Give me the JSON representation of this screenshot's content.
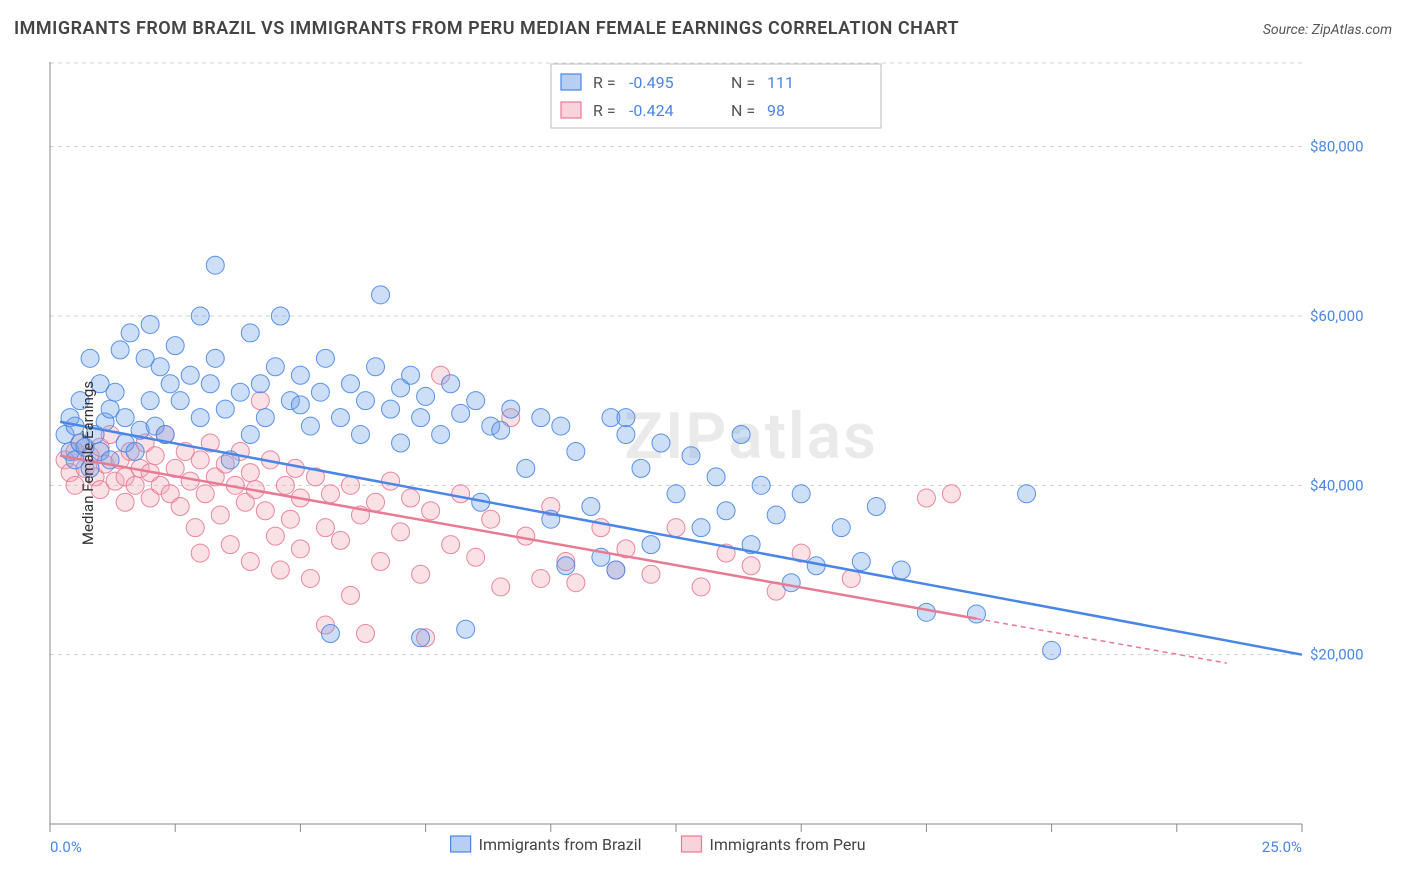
{
  "title": "IMMIGRANTS FROM BRAZIL VS IMMIGRANTS FROM PERU MEDIAN FEMALE EARNINGS CORRELATION CHART",
  "source": "Source: ZipAtlas.com",
  "ylabel": "Median Female Earnings",
  "watermark": "ZIPatlas",
  "plot": {
    "background_color": "#ffffff",
    "grid_color": "#d0d0d0",
    "axis_color": "#888888",
    "xlim": [
      0,
      25
    ],
    "ylim": [
      0,
      90000
    ],
    "y_ticks": [
      20000,
      40000,
      60000,
      80000
    ],
    "y_tick_labels": [
      "$20,000",
      "$40,000",
      "$60,000",
      "$80,000"
    ],
    "x_tick_positions": [
      0,
      2.5,
      5,
      7.5,
      10,
      12.5,
      15,
      17.5,
      20,
      22.5,
      25
    ],
    "x_axis_start_label": "0.0%",
    "x_axis_end_label": "25.0%",
    "marker_radius": 9,
    "marker_fill_opacity": 0.35,
    "marker_stroke_opacity": 0.9,
    "marker_stroke_width": 1,
    "trend_line_width": 2.5
  },
  "series": [
    {
      "name": "Immigrants from Brazil",
      "color": "#6fa0e8",
      "stroke": "#4a86e8",
      "R": "-0.495",
      "N": "111",
      "trend": {
        "x1": 0.2,
        "y1": 47500,
        "x2": 25,
        "y2": 20000,
        "dash_from_x": null
      },
      "points": [
        [
          0.3,
          46000
        ],
        [
          0.4,
          44000
        ],
        [
          0.4,
          48000
        ],
        [
          0.5,
          43000
        ],
        [
          0.5,
          47000
        ],
        [
          0.6,
          45000
        ],
        [
          0.6,
          50000
        ],
        [
          0.7,
          44500
        ],
        [
          0.8,
          55000
        ],
        [
          0.8,
          42000
        ],
        [
          0.9,
          46000
        ],
        [
          1.0,
          52000
        ],
        [
          1.0,
          44000
        ],
        [
          1.1,
          47500
        ],
        [
          1.2,
          49000
        ],
        [
          1.2,
          43000
        ],
        [
          1.3,
          51000
        ],
        [
          1.4,
          56000
        ],
        [
          1.5,
          45000
        ],
        [
          1.5,
          48000
        ],
        [
          1.6,
          58000
        ],
        [
          1.7,
          44000
        ],
        [
          1.8,
          46500
        ],
        [
          1.9,
          55000
        ],
        [
          2.0,
          50000
        ],
        [
          2.0,
          59000
        ],
        [
          2.1,
          47000
        ],
        [
          2.2,
          54000
        ],
        [
          2.3,
          46000
        ],
        [
          2.4,
          52000
        ],
        [
          2.5,
          56500
        ],
        [
          2.6,
          50000
        ],
        [
          2.8,
          53000
        ],
        [
          3.0,
          48000
        ],
        [
          3.0,
          60000
        ],
        [
          3.2,
          52000
        ],
        [
          3.3,
          66000
        ],
        [
          3.3,
          55000
        ],
        [
          3.5,
          49000
        ],
        [
          3.6,
          43000
        ],
        [
          3.8,
          51000
        ],
        [
          4.0,
          46000
        ],
        [
          4.0,
          58000
        ],
        [
          4.2,
          52000
        ],
        [
          4.3,
          48000
        ],
        [
          4.5,
          54000
        ],
        [
          4.6,
          60000
        ],
        [
          4.8,
          50000
        ],
        [
          5.0,
          53000
        ],
        [
          5.0,
          49500
        ],
        [
          5.2,
          47000
        ],
        [
          5.4,
          51000
        ],
        [
          5.5,
          55000
        ],
        [
          5.6,
          22500
        ],
        [
          5.8,
          48000
        ],
        [
          6.0,
          52000
        ],
        [
          6.2,
          46000
        ],
        [
          6.3,
          50000
        ],
        [
          6.5,
          54000
        ],
        [
          6.6,
          62500
        ],
        [
          6.8,
          49000
        ],
        [
          7.0,
          51500
        ],
        [
          7.0,
          45000
        ],
        [
          7.2,
          53000
        ],
        [
          7.4,
          22000
        ],
        [
          7.4,
          48000
        ],
        [
          7.5,
          50500
        ],
        [
          7.8,
          46000
        ],
        [
          8.0,
          52000
        ],
        [
          8.2,
          48500
        ],
        [
          8.3,
          23000
        ],
        [
          8.5,
          50000
        ],
        [
          8.6,
          38000
        ],
        [
          8.8,
          47000
        ],
        [
          9.0,
          46500
        ],
        [
          9.2,
          49000
        ],
        [
          9.5,
          42000
        ],
        [
          9.8,
          48000
        ],
        [
          10.0,
          36000
        ],
        [
          10.2,
          47000
        ],
        [
          10.3,
          30500
        ],
        [
          10.5,
          44000
        ],
        [
          10.8,
          37500
        ],
        [
          11.0,
          31500
        ],
        [
          11.2,
          48000
        ],
        [
          11.3,
          30000
        ],
        [
          11.5,
          46000
        ],
        [
          11.5,
          48000
        ],
        [
          11.8,
          42000
        ],
        [
          12.0,
          33000
        ],
        [
          12.2,
          45000
        ],
        [
          12.5,
          39000
        ],
        [
          12.8,
          43500
        ],
        [
          13.0,
          35000
        ],
        [
          13.3,
          41000
        ],
        [
          13.5,
          37000
        ],
        [
          13.8,
          46000
        ],
        [
          14.0,
          33000
        ],
        [
          14.2,
          40000
        ],
        [
          14.5,
          36500
        ],
        [
          14.8,
          28500
        ],
        [
          15.0,
          39000
        ],
        [
          15.3,
          30500
        ],
        [
          15.8,
          35000
        ],
        [
          16.2,
          31000
        ],
        [
          16.5,
          37500
        ],
        [
          17.0,
          30000
        ],
        [
          17.5,
          25000
        ],
        [
          18.5,
          24800
        ],
        [
          19.5,
          39000
        ],
        [
          20.0,
          20500
        ]
      ]
    },
    {
      "name": "Immigrants from Peru",
      "color": "#f2a8b8",
      "stroke": "#e87a94",
      "R": "-0.424",
      "N": "98",
      "trend": {
        "x1": 0.2,
        "y1": 43500,
        "x2": 23.5,
        "y2": 19000,
        "dash_from_x": 18.5
      },
      "points": [
        [
          0.3,
          43000
        ],
        [
          0.4,
          41500
        ],
        [
          0.5,
          44000
        ],
        [
          0.5,
          40000
        ],
        [
          0.6,
          45000
        ],
        [
          0.7,
          42000
        ],
        [
          0.8,
          43500
        ],
        [
          0.9,
          41000
        ],
        [
          1.0,
          44500
        ],
        [
          1.0,
          39500
        ],
        [
          1.1,
          42500
        ],
        [
          1.2,
          46000
        ],
        [
          1.3,
          40500
        ],
        [
          1.4,
          43000
        ],
        [
          1.5,
          41000
        ],
        [
          1.5,
          38000
        ],
        [
          1.6,
          44000
        ],
        [
          1.7,
          40000
        ],
        [
          1.8,
          42000
        ],
        [
          1.9,
          45000
        ],
        [
          2.0,
          41500
        ],
        [
          2.0,
          38500
        ],
        [
          2.1,
          43500
        ],
        [
          2.2,
          40000
        ],
        [
          2.3,
          46000
        ],
        [
          2.4,
          39000
        ],
        [
          2.5,
          42000
        ],
        [
          2.6,
          37500
        ],
        [
          2.7,
          44000
        ],
        [
          2.8,
          40500
        ],
        [
          2.9,
          35000
        ],
        [
          3.0,
          43000
        ],
        [
          3.0,
          32000
        ],
        [
          3.1,
          39000
        ],
        [
          3.2,
          45000
        ],
        [
          3.3,
          41000
        ],
        [
          3.4,
          36500
        ],
        [
          3.5,
          42500
        ],
        [
          3.6,
          33000
        ],
        [
          3.7,
          40000
        ],
        [
          3.8,
          44000
        ],
        [
          3.9,
          38000
        ],
        [
          4.0,
          41500
        ],
        [
          4.0,
          31000
        ],
        [
          4.1,
          39500
        ],
        [
          4.2,
          50000
        ],
        [
          4.3,
          37000
        ],
        [
          4.4,
          43000
        ],
        [
          4.5,
          34000
        ],
        [
          4.6,
          30000
        ],
        [
          4.7,
          40000
        ],
        [
          4.8,
          36000
        ],
        [
          4.9,
          42000
        ],
        [
          5.0,
          32500
        ],
        [
          5.0,
          38500
        ],
        [
          5.2,
          29000
        ],
        [
          5.3,
          41000
        ],
        [
          5.5,
          35000
        ],
        [
          5.5,
          23500
        ],
        [
          5.6,
          39000
        ],
        [
          5.8,
          33500
        ],
        [
          6.0,
          40000
        ],
        [
          6.0,
          27000
        ],
        [
          6.2,
          36500
        ],
        [
          6.3,
          22500
        ],
        [
          6.5,
          38000
        ],
        [
          6.6,
          31000
        ],
        [
          6.8,
          40500
        ],
        [
          7.0,
          34500
        ],
        [
          7.2,
          38500
        ],
        [
          7.4,
          29500
        ],
        [
          7.5,
          22000
        ],
        [
          7.6,
          37000
        ],
        [
          7.8,
          53000
        ],
        [
          8.0,
          33000
        ],
        [
          8.2,
          39000
        ],
        [
          8.5,
          31500
        ],
        [
          8.8,
          36000
        ],
        [
          9.0,
          28000
        ],
        [
          9.2,
          48000
        ],
        [
          9.5,
          34000
        ],
        [
          9.8,
          29000
        ],
        [
          10.0,
          37500
        ],
        [
          10.3,
          31000
        ],
        [
          10.5,
          28500
        ],
        [
          11.0,
          35000
        ],
        [
          11.3,
          30000
        ],
        [
          11.5,
          32500
        ],
        [
          12.0,
          29500
        ],
        [
          12.5,
          35000
        ],
        [
          13.0,
          28000
        ],
        [
          13.5,
          32000
        ],
        [
          14.0,
          30500
        ],
        [
          14.5,
          27500
        ],
        [
          15.0,
          32000
        ],
        [
          16.0,
          29000
        ],
        [
          17.5,
          38500
        ],
        [
          18.0,
          39000
        ]
      ]
    }
  ],
  "stats_box": {
    "labels": {
      "r": "R =",
      "n": "N ="
    }
  },
  "bottom_legend": {
    "items": [
      "Immigrants from Brazil",
      "Immigrants from Peru"
    ]
  }
}
